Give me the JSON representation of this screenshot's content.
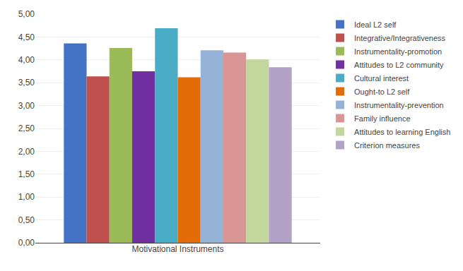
{
  "chart_data": {
    "type": "bar",
    "categories": [
      "Motivational Instruments"
    ],
    "series": [
      {
        "name": "Ideal L2 self",
        "color": "#4472C4",
        "values": [
          4.36
        ]
      },
      {
        "name": "Integrative/Integrativeness",
        "color": "#C0504D",
        "values": [
          3.64
        ]
      },
      {
        "name": "Instrumentality-promotion",
        "color": "#9BBB59",
        "values": [
          4.26
        ]
      },
      {
        "name": "Attitudes to L2 community",
        "color": "#7030A0",
        "values": [
          3.75
        ]
      },
      {
        "name": "Cultural interest",
        "color": "#4BACC6",
        "values": [
          4.69
        ]
      },
      {
        "name": "Ought-to L2 self",
        "color": "#E36C09",
        "values": [
          3.62
        ]
      },
      {
        "name": "Instrumentality-prevention",
        "color": "#95B3D7",
        "values": [
          4.21
        ]
      },
      {
        "name": "Family influence",
        "color": "#D99694",
        "values": [
          4.16
        ]
      },
      {
        "name": "Attitudes to learning English",
        "color": "#C3D69B",
        "values": [
          4.01
        ]
      },
      {
        "name": "Criterion measures",
        "color": "#B2A2C7",
        "values": [
          3.84
        ]
      }
    ],
    "ylim": [
      0,
      5.0
    ],
    "yticks": [
      {
        "value": 0.0,
        "label": "0,00"
      },
      {
        "value": 0.5,
        "label": "0,50"
      },
      {
        "value": 1.0,
        "label": "1,00"
      },
      {
        "value": 1.5,
        "label": "1,50"
      },
      {
        "value": 2.0,
        "label": "2,00"
      },
      {
        "value": 2.5,
        "label": "2,50"
      },
      {
        "value": 3.0,
        "label": "3,00"
      },
      {
        "value": 3.5,
        "label": "3,50"
      },
      {
        "value": 4.0,
        "label": "4,00"
      },
      {
        "value": 4.5,
        "label": "4,50"
      },
      {
        "value": 5.0,
        "label": "5,00"
      }
    ],
    "grid": true,
    "legend": "right"
  }
}
